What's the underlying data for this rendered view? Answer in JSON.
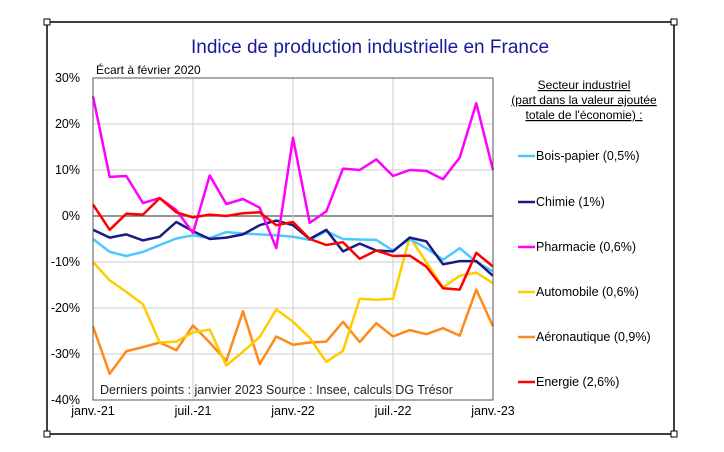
{
  "chart_data": {
    "type": "line",
    "title": "Indice de production industrielle en France",
    "ylabel": "Écart à février 2020",
    "note": "Derniers points : janvier 2023 Source : Insee, calculs DG Trésor",
    "legend_title": [
      "Secteur industriel",
      "(part dans la valeur ajoutée",
      "totale de l'économie) :"
    ],
    "legend_position": "right",
    "grid": true,
    "ylim": [
      -40,
      30
    ],
    "yticks": [
      30,
      20,
      10,
      0,
      -10,
      -20,
      -30,
      -40
    ],
    "ytick_labels": [
      "30%",
      "20%",
      "10%",
      "0%",
      "-10%",
      "-20%",
      "-30%",
      "-40%"
    ],
    "xtick_labels": [
      "janv.-21",
      "juil.-21",
      "janv.-22",
      "juil.-22",
      "janv.-23"
    ],
    "x_start": "janv.-21",
    "x_end": "janv.-23",
    "series": [
      {
        "name": "Aéronautique (0,9%)",
        "color": "#ff8a1a",
        "values": [
          -24,
          -34.3,
          -29.4,
          -28.5,
          -27.5,
          -29.2,
          -23.8,
          -27.5,
          -31.5,
          -20.7,
          -32.2,
          -26.2,
          -28,
          -27.5,
          -27.3,
          -23,
          -27.4,
          -23.3,
          -26.2,
          -24.8,
          -25.7,
          -24.4,
          -26,
          -16,
          -24
        ]
      },
      {
        "name": "Automobile (0,6%)",
        "color": "#ffcc00",
        "values": [
          -10,
          -14,
          -16.5,
          -19.2,
          -27.5,
          -27.3,
          -25.3,
          -24.7,
          -32.5,
          -29.5,
          -26.3,
          -20.3,
          -23,
          -26.5,
          -31.7,
          -29.3,
          -18,
          -18.2,
          -18,
          -4.6,
          -10,
          -15.5,
          -13,
          -12.3,
          -14.6
        ]
      },
      {
        "name": "Bois-papier (0,5%)",
        "color": "#4dc8ff",
        "values": [
          -5,
          -7.8,
          -8.7,
          -7.8,
          -6.3,
          -4.9,
          -4.2,
          -4.8,
          -3.5,
          -3.8,
          -4,
          -4.2,
          -4.5,
          -5.2,
          -3.3,
          -5,
          -5.1,
          -5.2,
          -7.5,
          -5,
          -7,
          -9.5,
          -7,
          -10,
          -12
        ]
      },
      {
        "name": "Chimie (1%)",
        "color": "#1a1a80",
        "values": [
          -3,
          -4.7,
          -4,
          -5.3,
          -4.5,
          -1.3,
          -3.3,
          -5,
          -4.7,
          -4,
          -2,
          -1,
          -2,
          -5,
          -3,
          -7.7,
          -6,
          -7.5,
          -7.7,
          -4.7,
          -5.5,
          -10.5,
          -9.8,
          -9.8,
          -13
        ]
      },
      {
        "name": "Pharmacie (0,6%)",
        "color": "#ff00ff",
        "values": [
          26,
          8.5,
          8.7,
          2.8,
          3.9,
          1.3,
          -3.7,
          8.8,
          2.6,
          3.7,
          1.8,
          -7,
          17,
          -1.5,
          1,
          10.3,
          10,
          12.3,
          8.7,
          10,
          9.8,
          8,
          12.7,
          24.5,
          10
        ]
      },
      {
        "name": "Energie (2,6%)",
        "color": "#ff0000",
        "values": [
          2.5,
          -3,
          0.5,
          0.3,
          3.9,
          0.8,
          -0.3,
          0.3,
          0,
          0.6,
          0.8,
          -2,
          -1.3,
          -5,
          -6.3,
          -5.7,
          -9.3,
          -7.5,
          -8.7,
          -8.6,
          -11,
          -15.7,
          -16,
          -8,
          -11
        ]
      }
    ],
    "legend_order": [
      2,
      3,
      4,
      1,
      0,
      5
    ]
  }
}
